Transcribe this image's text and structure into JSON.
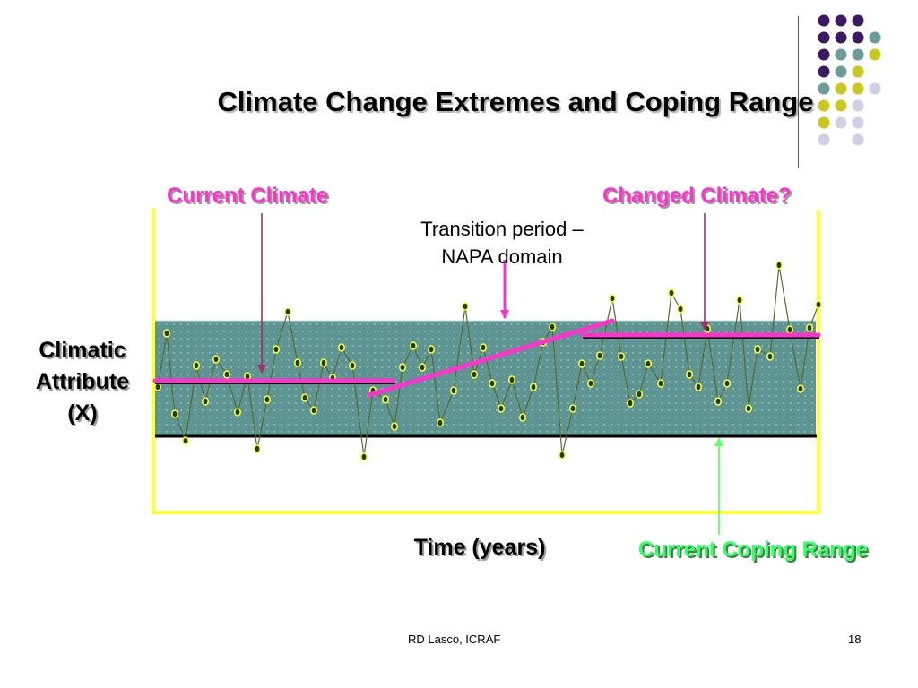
{
  "slide": {
    "title": "Climate Change Extremes and Coping Range",
    "current_climate": "Current Climate",
    "changed_climate": "Changed Climate?",
    "transition_line1": "Transition period –",
    "transition_line2": "NAPA domain",
    "y_label_line1": "Climatic",
    "y_label_line2": "Attribute",
    "y_label_line3": "(X)",
    "x_label": "Time (years)",
    "coping_range": "Current Coping Range",
    "footer_source": "RD Lasco, ICRAF",
    "page_number": "18"
  },
  "colors": {
    "frame": "#ffff33",
    "coping_band": "#5e9593",
    "trend": "#ff33cc",
    "series_line": "#556b2f",
    "marker": "#ffff33",
    "decor_purple": "#3b1a63",
    "decor_teal": "#6a9c9a",
    "decor_yellow": "#c8c81e",
    "decor_lavender": "#d0d0e4"
  },
  "decor_dots": [
    [
      "purple",
      "purple",
      "purple",
      ""
    ],
    [
      "purple",
      "purple",
      "purple",
      "teal"
    ],
    [
      "purple",
      "teal",
      "teal",
      "yellow"
    ],
    [
      "purple",
      "teal",
      "yellow",
      ""
    ],
    [
      "teal",
      "yellow",
      "yellow",
      "lavender"
    ],
    [
      "yellow",
      "yellow",
      "lavender",
      ""
    ],
    [
      "yellow",
      "lavender",
      "lavender",
      ""
    ],
    [
      "lavender",
      "",
      "lavender",
      ""
    ]
  ]
}
